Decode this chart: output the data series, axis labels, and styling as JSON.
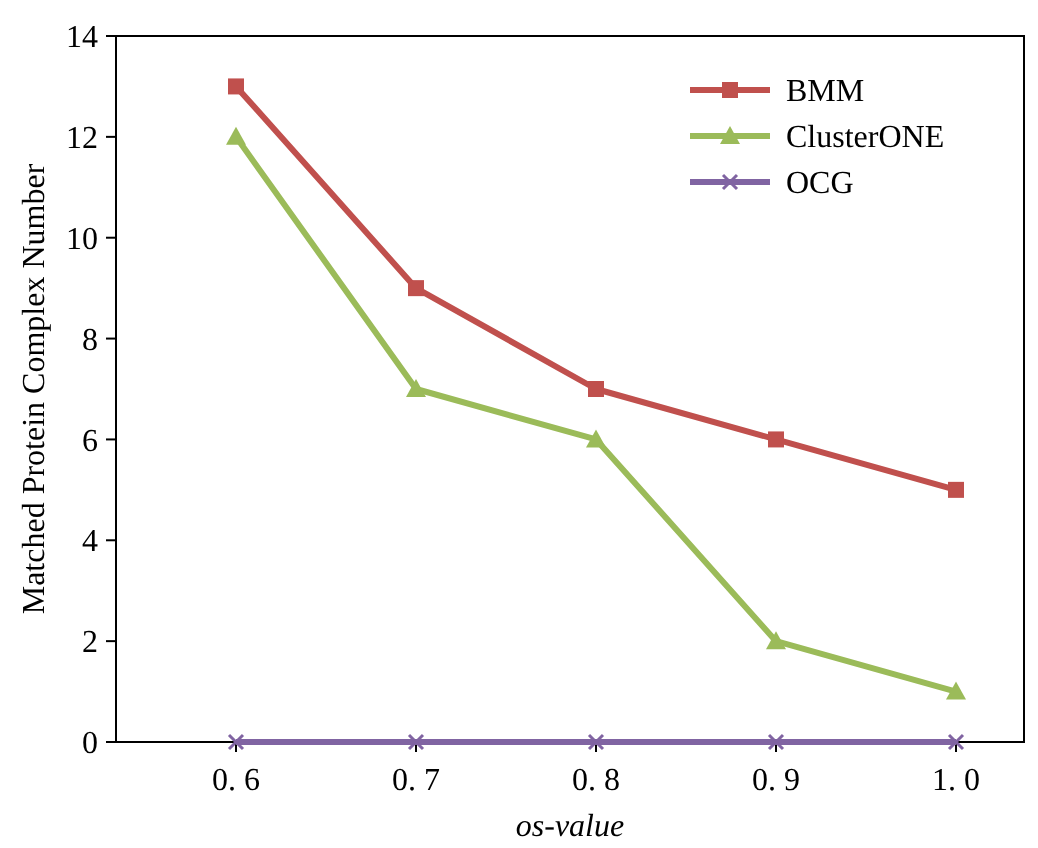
{
  "chart_data": {
    "type": "line",
    "xlabel": "os-value",
    "ylabel": "Matched Protein Complex Number",
    "categories": [
      "0. 6",
      "0. 7",
      "0. 8",
      "0. 9",
      "1. 0"
    ],
    "series": [
      {
        "name": "BMM",
        "color": "#c0504d",
        "marker": "square",
        "values": [
          13,
          9,
          7,
          6,
          5
        ]
      },
      {
        "name": "ClusterONE",
        "color": "#9bbb59",
        "marker": "triangle",
        "values": [
          12,
          7,
          6,
          2,
          1
        ]
      },
      {
        "name": "OCG",
        "color": "#8064a2",
        "marker": "cross",
        "values": [
          0,
          0,
          0,
          0,
          0
        ]
      }
    ],
    "ylim": [
      0,
      14
    ],
    "yticks": [
      0,
      2,
      4,
      6,
      8,
      10,
      12,
      14
    ],
    "grid": false,
    "legend": "top right",
    "line_style": "solid"
  }
}
